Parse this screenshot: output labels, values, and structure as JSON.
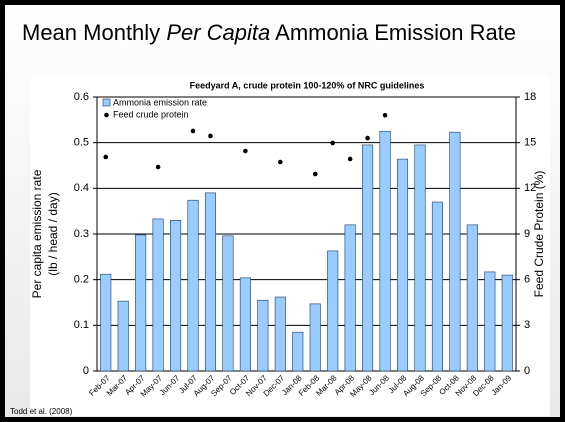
{
  "chart_data": {
    "type": "bar",
    "slide_title": {
      "before": "Mean Monthly",
      "italic": "Per Capita",
      "after": "Ammonia Emission Rate"
    },
    "title": "Feedyard A, crude protein 100-120% of NRC guidelines",
    "ylabel": [
      "Per capita emission rate",
      "(lb / head / day)"
    ],
    "y2label": "Feed Crude Protein (%)",
    "source": "Todd et al. (2008)",
    "categories": [
      "Feb-07",
      "Mar-07",
      "Apr-07",
      "May-07",
      "Jun-07",
      "Jul-07",
      "Aug-07",
      "Sep-07",
      "Oct-07",
      "Nov-07",
      "Dec-07",
      "Jan-08",
      "Feb-08",
      "Mar-08",
      "Apr-08",
      "May-08",
      "Jun-08",
      "Jul-08",
      "Aug-08",
      "Sep-08",
      "Oct-08",
      "Nov-08",
      "Dec-08",
      "Jan-09"
    ],
    "series": [
      {
        "name": "Ammonia emission rate",
        "type": "bar",
        "color": "#99ccff",
        "axis": "y",
        "values": [
          0.212,
          0.153,
          0.298,
          0.333,
          0.33,
          0.374,
          0.39,
          0.296,
          0.204,
          0.155,
          0.162,
          0.085,
          0.147,
          0.263,
          0.32,
          0.495,
          0.525,
          0.464,
          0.495,
          0.37,
          0.523,
          0.32,
          0.217,
          0.21
        ]
      },
      {
        "name": "Feed crude protein",
        "type": "scatter",
        "color": "#000000",
        "axis": "y2",
        "values": [
          14.06,
          null,
          null,
          13.4,
          null,
          15.77,
          15.44,
          null,
          14.45,
          null,
          13.73,
          null,
          12.94,
          14.98,
          13.93,
          15.3,
          16.8,
          null,
          null,
          null,
          null,
          null,
          null,
          null
        ]
      }
    ],
    "ylim": [
      0,
      0.6
    ],
    "yticks": [
      0,
      0.1,
      0.2,
      0.3,
      0.4,
      0.5,
      0.6
    ],
    "y2lim": [
      0,
      18
    ],
    "y2ticks": [
      0,
      3,
      6,
      9,
      12,
      15,
      18
    ],
    "grid": true,
    "legend": "top-left"
  }
}
